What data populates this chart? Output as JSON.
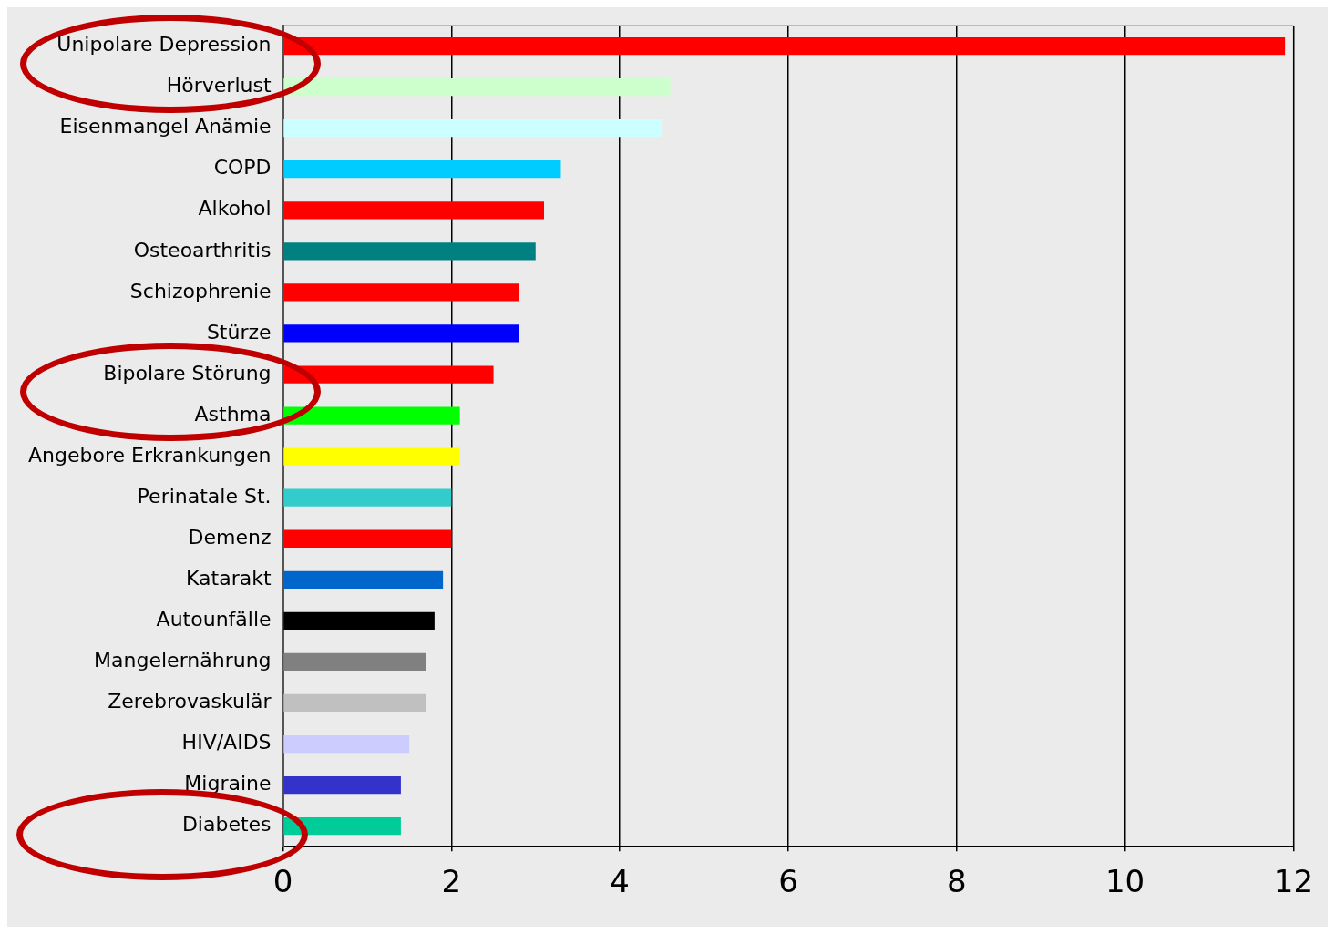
{
  "chart_data": {
    "type": "bar",
    "orientation": "horizontal",
    "categories": [
      "Unipolare Depression",
      "Hörverlust",
      "Eisenmangel Anämie",
      "COPD",
      "Alkohol",
      "Osteoarthritis",
      "Schizophrenie",
      "Stürze",
      "Bipolare Störung",
      "Asthma",
      "Angebore Erkrankungen",
      "Perinatale St.",
      "Demenz",
      "Katarakt",
      "Autounfälle",
      "Mangelernährung",
      "Zerebrovaskulär",
      "HIV/AIDS",
      "Migraine",
      "Diabetes"
    ],
    "values": [
      11.9,
      4.6,
      4.5,
      3.3,
      3.1,
      3.0,
      2.8,
      2.8,
      2.5,
      2.1,
      2.1,
      2.0,
      2.0,
      1.9,
      1.8,
      1.7,
      1.7,
      1.5,
      1.4,
      1.4
    ],
    "colors": [
      "#ff0000",
      "#ccffcc",
      "#ccffff",
      "#00ccff",
      "#ff0000",
      "#008080",
      "#ff0000",
      "#0000ff",
      "#ff0000",
      "#00ff00",
      "#ffff00",
      "#33cccc",
      "#ff0000",
      "#0066cc",
      "#000000",
      "#808080",
      "#c0c0c0",
      "#ccccff",
      "#3333cc",
      "#00cc99"
    ],
    "xlim": [
      0,
      12
    ],
    "xticks": [
      0,
      2,
      4,
      6,
      8,
      10,
      12
    ],
    "grid": "x",
    "legend": false
  }
}
